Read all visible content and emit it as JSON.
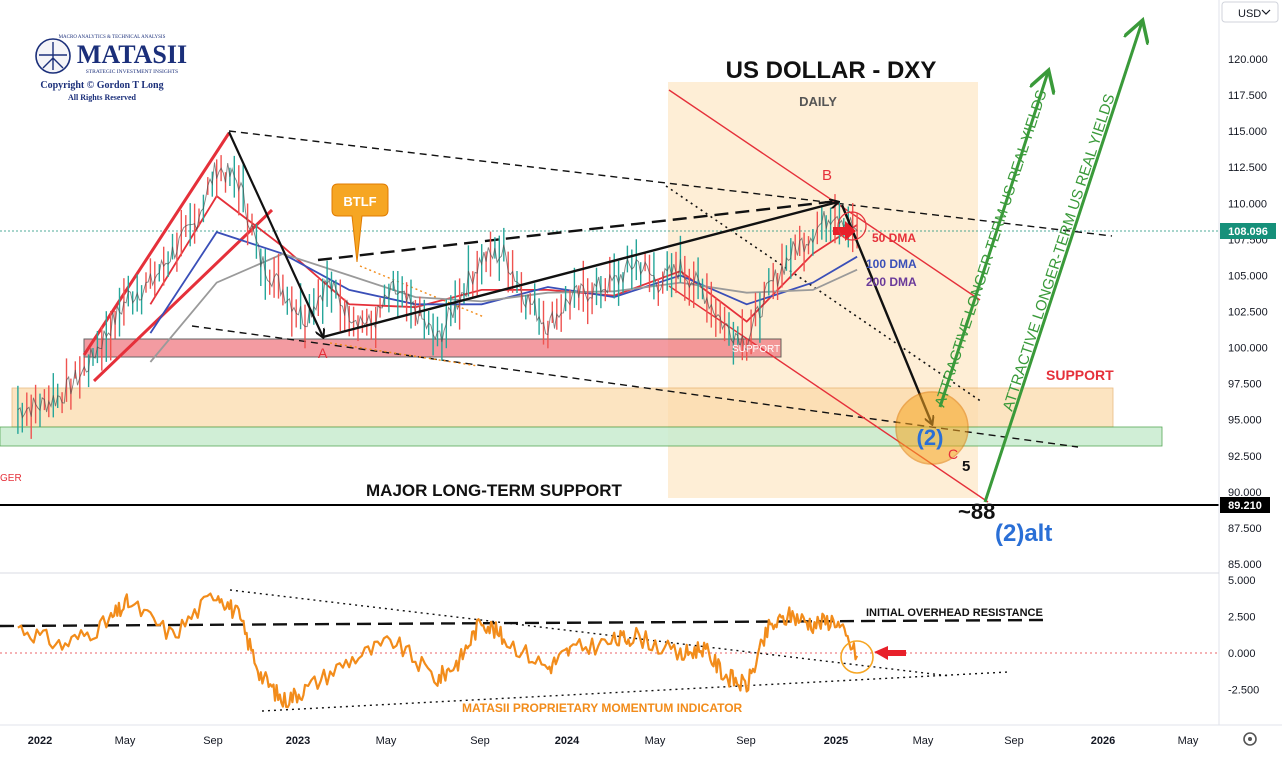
{
  "logo": {
    "top_line": "MACRO ANALYTICS & TECHNICAL ANALYSIS",
    "brand": "MATASII",
    "subtitle": "STRATEGIC INVESTMENT INSIGHTS",
    "copyright": "Copyright © Gordon T Long",
    "rights": "All Rights Reserved"
  },
  "header": {
    "title": "US DOLLAR - DXY",
    "timeframe": "DAILY",
    "currency_button": "USD"
  },
  "colors": {
    "price_line": "#1e8c5a",
    "dma50": "#e5303a",
    "dma100": "#3a4fb8",
    "dma200": "#9a9a9a",
    "momentum": "#f28c1b",
    "arrow_green": "#3a9a3a",
    "support_red": "#f07a82",
    "support_orange": "#fcd9a8",
    "support_green": "#c8ecd0",
    "channel_fill": "#fde8c8",
    "wave_label_blue": "#2a6fd6",
    "current_badge": "#16907a"
  },
  "annotations": {
    "btlf": "BTLF",
    "wave_a": "A",
    "wave_b": "B",
    "wave_c": "C",
    "wave_5": "5",
    "wave_2": "(2)",
    "wave_2alt": "(2)alt",
    "target_88": "~88",
    "support_right": "SUPPORT",
    "support_box": "SUPPORT",
    "major_support": "MAJOR LONG-TERM SUPPORT",
    "attractive_1": "ATTRACTIVE LONGER-TERM US REAL YIELDS",
    "attractive_2": "ATTRACTIVE LONGER-TERM US REAL YIELDS",
    "dma50_label": "50 DMA",
    "dma100_label": "100 DMA",
    "dma200_label": "200 DMA",
    "left_edge_fragment": "GER",
    "overhead": "INITIAL OVERHEAD RESISTANCE",
    "indicator": "MATASII PROPRIETARY MOMENTUM INDICATOR"
  },
  "chart_data": [
    {
      "type": "line",
      "title": "US DOLLAR - DXY",
      "subtitle": "DAILY",
      "xlabel": "",
      "ylabel": "",
      "ylim": [
        84.5,
        124.5
      ],
      "y_ticks": [
        85,
        87.5,
        90,
        92.5,
        95,
        97.5,
        100,
        102.5,
        105,
        107.5,
        110,
        112.5,
        115,
        117.5,
        120
      ],
      "y_tick_labels": [
        "85.000",
        "87.500",
        "90.000",
        "92.500",
        "95.000",
        "97.500",
        "100.000",
        "102.500",
        "105.000",
        "107.500",
        "110.000",
        "112.500",
        "115.000",
        "117.500",
        "120.000"
      ],
      "x_tick_labels": [
        "2022",
        "May",
        "Sep",
        "2023",
        "May",
        "Sep",
        "2024",
        "May",
        "Sep",
        "2025",
        "May",
        "Sep",
        "2026",
        "May"
      ],
      "current_price": "108.096",
      "major_support_level": "89.210",
      "series": [
        {
          "name": "",
          "x": [
            "2021-12",
            "2022-01",
            "2022-02",
            "2022-03",
            "2022-04",
            "2022-05",
            "2022-06",
            "2022-07",
            "2022-08",
            "2022-09",
            "2022-10",
            "2022-11",
            "2022-12",
            "2023-01",
            "2023-02",
            "2023-03",
            "2023-04",
            "2023-05",
            "2023-06",
            "2023-07",
            "2023-08",
            "2023-09",
            "2023-10",
            "2023-11",
            "2023-12",
            "2024-01",
            "2024-02",
            "2024-03",
            "2024-04",
            "2024-05",
            "2024-06",
            "2024-07",
            "2024-08",
            "2024-09",
            "2024-10",
            "2024-11",
            "2024-12",
            "2025-01",
            "2025-02"
          ],
          "values": [
            95.7,
            96.0,
            96.7,
            98.4,
            101.0,
            103.5,
            104.4,
            106.6,
            108.5,
            112.5,
            111.5,
            106.0,
            104.0,
            102.0,
            104.5,
            102.5,
            101.5,
            104.0,
            102.5,
            100.5,
            103.5,
            106.2,
            106.5,
            103.5,
            101.5,
            103.4,
            104.0,
            104.5,
            106.0,
            104.5,
            105.5,
            104.0,
            101.5,
            100.5,
            104.0,
            106.5,
            108.0,
            109.5,
            108.1
          ]
        },
        {
          "name": "50 DMA",
          "x": [
            "2022-06",
            "2022-09",
            "2022-12",
            "2023-03",
            "2023-06",
            "2023-09",
            "2023-12",
            "2024-03",
            "2024-06",
            "2024-09",
            "2024-12",
            "2025-02"
          ],
          "values": [
            103.0,
            110.5,
            107.0,
            103.0,
            102.8,
            104.0,
            104.0,
            103.6,
            105.3,
            101.8,
            106.5,
            108.5
          ]
        },
        {
          "name": "100 DMA",
          "x": [
            "2022-06",
            "2022-09",
            "2022-12",
            "2023-03",
            "2023-06",
            "2023-09",
            "2023-12",
            "2024-03",
            "2024-06",
            "2024-09",
            "2024-12",
            "2025-02"
          ],
          "values": [
            101.0,
            108.0,
            106.5,
            104.0,
            103.0,
            103.0,
            104.2,
            103.5,
            105.0,
            103.0,
            104.5,
            106.3
          ]
        },
        {
          "name": "200 DMA",
          "x": [
            "2022-06",
            "2022-09",
            "2022-12",
            "2023-03",
            "2023-06",
            "2023-09",
            "2023-12",
            "2024-03",
            "2024-06",
            "2024-09",
            "2024-12",
            "2025-02"
          ],
          "values": [
            99.0,
            104.5,
            106.5,
            105.0,
            103.5,
            103.2,
            103.8,
            103.9,
            104.5,
            103.8,
            104.0,
            105.4
          ]
        }
      ]
    },
    {
      "type": "line",
      "title": "MATASII PROPRIETARY MOMENTUM INDICATOR",
      "ylim": [
        -3.6,
        5.4
      ],
      "y_ticks": [
        5,
        2.5,
        0,
        -2.5
      ],
      "y_tick_labels": [
        "5.000",
        "2.500",
        "0.000",
        "-2.500"
      ],
      "series": [
        {
          "name": "",
          "x": [
            "2021-12",
            "2022-02",
            "2022-04",
            "2022-05",
            "2022-07",
            "2022-09",
            "2022-10",
            "2022-11",
            "2022-12",
            "2023-01",
            "2023-03",
            "2023-05",
            "2023-07",
            "2023-08",
            "2023-09",
            "2023-10",
            "2023-12",
            "2024-01",
            "2024-03",
            "2024-04",
            "2024-06",
            "2024-07",
            "2024-08",
            "2024-09",
            "2024-10",
            "2024-11",
            "2024-12",
            "2025-01",
            "2025-02"
          ],
          "values": [
            1.8,
            0.5,
            2.0,
            3.5,
            1.2,
            4.2,
            2.5,
            -1.5,
            -3.3,
            -2.5,
            -0.5,
            0.8,
            -1.8,
            -0.5,
            2.3,
            1.0,
            -1.0,
            0.2,
            0.8,
            1.2,
            -0.2,
            0.4,
            -1.5,
            -2.3,
            1.7,
            2.6,
            2.0,
            2.3,
            -0.2
          ]
        }
      ]
    }
  ]
}
